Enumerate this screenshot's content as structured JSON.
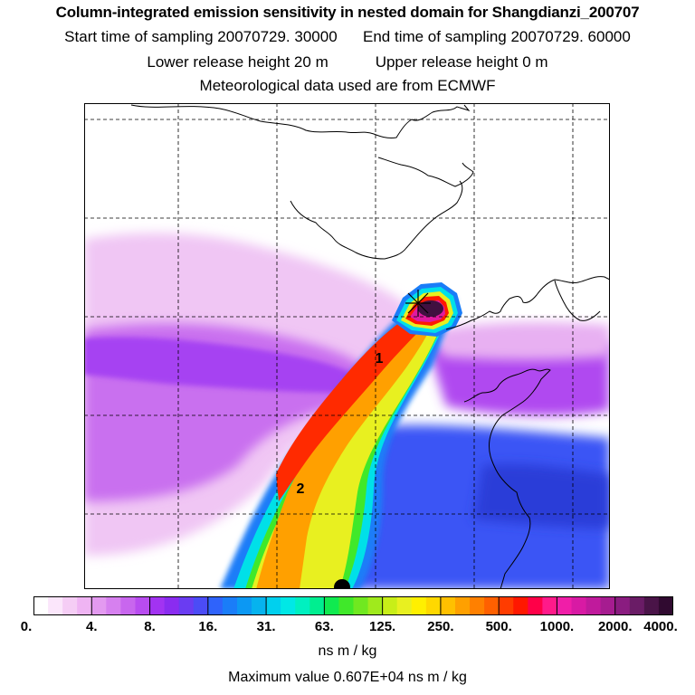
{
  "header": {
    "title": "Column-integrated emission sensitivity in nested domain for Shangdianzi_200707",
    "start_label": "Start time of sampling 20070729. 30000",
    "end_label": "End time of sampling 20070729. 60000",
    "lower_label": "Lower release height   20 m",
    "upper_label": "Upper release height    0 m",
    "met_label": "Meteorological data used are from ECMWF"
  },
  "map": {
    "markers": [
      "1",
      "2"
    ]
  },
  "colorbar": {
    "tick_labels": [
      "0.",
      "4.",
      "8.",
      "16.",
      "31.",
      "63.",
      "125.",
      "250.",
      "500.",
      "1000.",
      "2000.",
      "4000."
    ],
    "colors": [
      "#ffffff",
      "#fbe6fb",
      "#f5cdf5",
      "#efb4f3",
      "#e39af0",
      "#d680ef",
      "#c866ee",
      "#b84cf0",
      "#a233f2",
      "#8a2cf0",
      "#6a3cf2",
      "#4b4cf6",
      "#2f63fb",
      "#1a7df8",
      "#0c98f3",
      "#06b3ee",
      "#00d0ee",
      "#00e8e6",
      "#00f0c0",
      "#00ee90",
      "#10ea50",
      "#40e82a",
      "#70e820",
      "#a0ea1c",
      "#c8ee18",
      "#e8f020",
      "#fff000",
      "#ffd800",
      "#ffc000",
      "#ffa000",
      "#ff8000",
      "#ff6000",
      "#ff3c00",
      "#ff1800",
      "#ff0048",
      "#ff1a8a",
      "#f01ea8",
      "#d81aa4",
      "#c01a9c",
      "#a61c90",
      "#8a1c80",
      "#6a1c66",
      "#4a1448",
      "#300a30"
    ],
    "units": "ns m / kg"
  },
  "footer": {
    "max_value": "Maximum value  0.607E+04 ns m / kg"
  }
}
